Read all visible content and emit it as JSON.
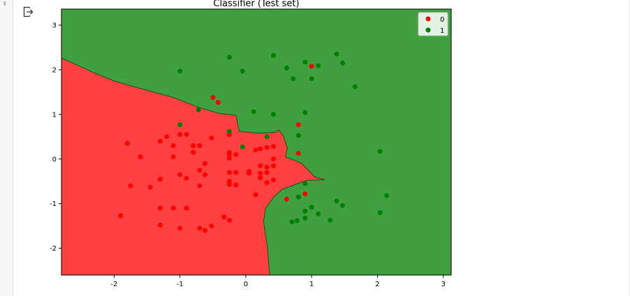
{
  "chart_data": {
    "type": "scatter",
    "title": "Classifier (Test set)",
    "xlabel": "",
    "ylabel": "",
    "xlim": [
      -2.8,
      3.12
    ],
    "ylim": [
      -2.6,
      3.36
    ],
    "xticks": [
      -2,
      -1,
      0,
      1,
      2,
      3
    ],
    "yticks": [
      -2,
      -1,
      0,
      1,
      2,
      3
    ],
    "xtick_labels": [
      "-2",
      "-1",
      "0",
      "1",
      "2",
      "3"
    ],
    "ytick_labels": [
      "-2",
      "-1",
      "0",
      "1",
      "2",
      "3"
    ],
    "grid": false,
    "legend_position": "top-right",
    "region_colors": {
      "0": "#ff4040",
      "1": "#40a040"
    },
    "decision_boundary": [
      [
        -2.8,
        2.26
      ],
      [
        -2.6,
        2.13
      ],
      [
        -2.3,
        1.93
      ],
      [
        -2.0,
        1.75
      ],
      [
        -1.7,
        1.62
      ],
      [
        -1.4,
        1.5
      ],
      [
        -1.1,
        1.38
      ],
      [
        -0.7,
        1.15
      ],
      [
        -0.4,
        1.02
      ],
      [
        -0.15,
        0.98
      ],
      [
        -0.1,
        0.62
      ],
      [
        0.2,
        0.58
      ],
      [
        0.45,
        0.6
      ],
      [
        0.5,
        0.65
      ],
      [
        0.57,
        0.52
      ],
      [
        0.63,
        0.25
      ],
      [
        0.6,
        0.05
      ],
      [
        0.7,
        0.0
      ],
      [
        0.85,
        -0.1
      ],
      [
        1.05,
        -0.4
      ],
      [
        1.2,
        -0.46
      ],
      [
        0.92,
        -0.48
      ],
      [
        0.7,
        -0.6
      ],
      [
        0.55,
        -0.68
      ],
      [
        0.42,
        -0.86
      ],
      [
        0.3,
        -1.1
      ],
      [
        0.27,
        -1.4
      ],
      [
        0.33,
        -2.0
      ],
      [
        0.36,
        -2.6
      ]
    ],
    "series": [
      {
        "name": "0",
        "color": "#ff0000",
        "points": [
          [
            -1.8,
            0.35
          ],
          [
            -1.6,
            0.05
          ],
          [
            -1.75,
            -0.6
          ],
          [
            -1.9,
            -1.27
          ],
          [
            -1.45,
            -0.63
          ],
          [
            -1.3,
            -0.45
          ],
          [
            -1.3,
            -1.1
          ],
          [
            -1.3,
            -1.48
          ],
          [
            -1.3,
            0.4
          ],
          [
            -1.2,
            0.5
          ],
          [
            -1.1,
            0.3
          ],
          [
            -1.1,
            0.05
          ],
          [
            -1.1,
            -1.1
          ],
          [
            -1.0,
            0.55
          ],
          [
            -1.0,
            -0.35
          ],
          [
            -1.0,
            -1.55
          ],
          [
            -0.9,
            0.55
          ],
          [
            -0.9,
            -0.43
          ],
          [
            -0.9,
            -1.1
          ],
          [
            -0.8,
            0.3
          ],
          [
            -0.8,
            0.15
          ],
          [
            -0.7,
            0.3
          ],
          [
            -0.7,
            -0.25
          ],
          [
            -0.7,
            -0.6
          ],
          [
            -0.7,
            -1.55
          ],
          [
            -0.62,
            -0.1
          ],
          [
            -0.62,
            -0.35
          ],
          [
            -0.62,
            -1.6
          ],
          [
            -0.52,
            -1.5
          ],
          [
            -0.52,
            0.47
          ],
          [
            -0.5,
            1.38
          ],
          [
            -0.42,
            1.27
          ],
          [
            -0.33,
            -1.3
          ],
          [
            -0.25,
            -1.37
          ],
          [
            -0.25,
            0.55
          ],
          [
            -0.25,
            0.15
          ],
          [
            -0.25,
            0.1
          ],
          [
            -0.25,
            0.02
          ],
          [
            -0.25,
            -0.3
          ],
          [
            -0.25,
            -0.5
          ],
          [
            -0.25,
            -0.57
          ],
          [
            -0.15,
            0.1
          ],
          [
            -0.15,
            -0.3
          ],
          [
            -0.15,
            -0.58
          ],
          [
            0.05,
            -0.28
          ],
          [
            0.05,
            -0.32
          ],
          [
            0.15,
            -0.8
          ],
          [
            0.15,
            0.2
          ],
          [
            0.22,
            0.23
          ],
          [
            0.22,
            -0.15
          ],
          [
            0.22,
            -0.32
          ],
          [
            0.22,
            -0.42
          ],
          [
            0.32,
            0.26
          ],
          [
            0.32,
            -0.18
          ],
          [
            0.32,
            -0.3
          ],
          [
            0.32,
            -0.53
          ],
          [
            0.42,
            0.28
          ],
          [
            0.42,
            0.0
          ],
          [
            0.42,
            -0.15
          ],
          [
            0.42,
            -0.47
          ],
          [
            0.62,
            -0.9
          ],
          [
            0.8,
            0.77
          ],
          [
            0.8,
            0.13
          ],
          [
            0.9,
            -0.78
          ],
          [
            1.0,
            2.08
          ]
        ]
      },
      {
        "name": "1",
        "color": "#008000",
        "points": [
          [
            -1.0,
            1.97
          ],
          [
            -1.0,
            0.77
          ],
          [
            -0.72,
            1.1
          ],
          [
            -0.25,
            2.28
          ],
          [
            -0.25,
            0.62
          ],
          [
            -0.05,
            1.97
          ],
          [
            -0.05,
            0.27
          ],
          [
            0.12,
            1.06
          ],
          [
            0.32,
            0.5
          ],
          [
            0.42,
            2.32
          ],
          [
            0.42,
            1.0
          ],
          [
            0.62,
            2.04
          ],
          [
            0.72,
            1.8
          ],
          [
            0.8,
            0.53
          ],
          [
            0.8,
            -0.85
          ],
          [
            0.78,
            -1.38
          ],
          [
            0.7,
            -1.41
          ],
          [
            0.9,
            2.17
          ],
          [
            0.9,
            1.04
          ],
          [
            0.9,
            -0.55
          ],
          [
            0.9,
            -1.17
          ],
          [
            0.9,
            -1.32
          ],
          [
            1.0,
            1.8
          ],
          [
            1.0,
            -1.08
          ],
          [
            1.1,
            2.09
          ],
          [
            1.1,
            -1.23
          ],
          [
            1.28,
            -1.37
          ],
          [
            1.38,
            2.35
          ],
          [
            1.38,
            -0.94
          ],
          [
            1.47,
            2.15
          ],
          [
            1.47,
            -1.04
          ],
          [
            1.66,
            1.62
          ],
          [
            2.04,
            0.17
          ],
          [
            2.04,
            -1.2
          ],
          [
            2.14,
            -0.82
          ]
        ]
      }
    ]
  }
}
